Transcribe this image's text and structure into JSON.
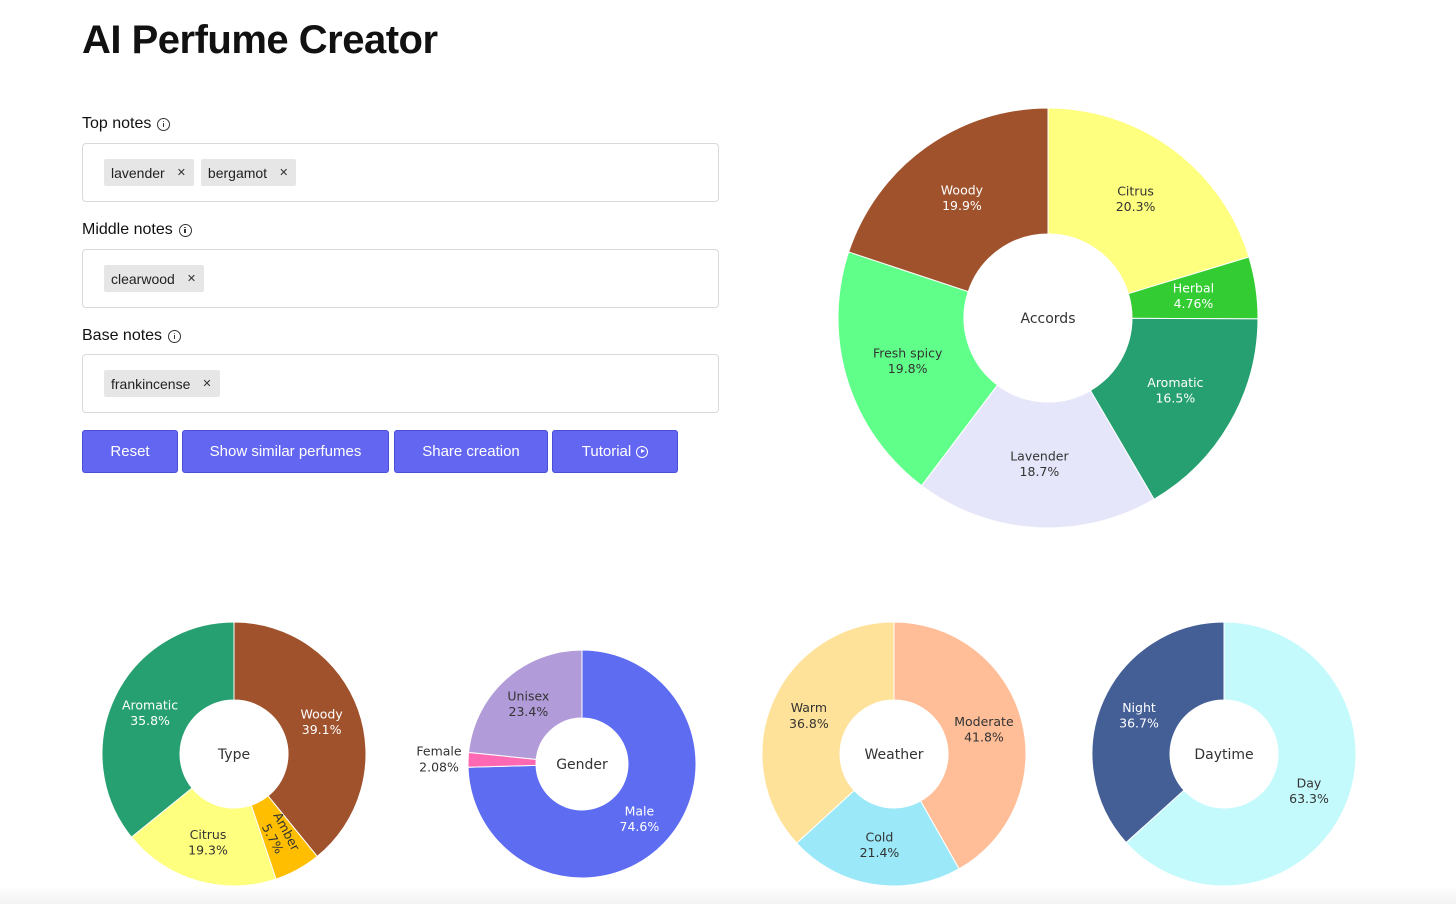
{
  "title": "AI Perfume Creator",
  "fields": [
    {
      "label": "Top notes",
      "tags": [
        "lavender",
        "bergamot"
      ]
    },
    {
      "label": "Middle notes",
      "tags": [
        "clearwood"
      ]
    },
    {
      "label": "Base notes",
      "tags": [
        "frankincense"
      ]
    }
  ],
  "buttons": {
    "reset": "Reset",
    "similar": "Show similar perfumes",
    "share": "Share creation",
    "tutorial": "Tutorial"
  },
  "chart_data": [
    {
      "type": "pie",
      "center_label": "Accords",
      "slices": [
        {
          "label": "Citrus",
          "pct": "20.3%",
          "value": 20.3,
          "color": "#ffff7f"
        },
        {
          "label": "Herbal",
          "pct": "4.76%",
          "value": 4.76,
          "color": "#33cc33"
        },
        {
          "label": "Aromatic",
          "pct": "16.5%",
          "value": 16.5,
          "color": "#26a070"
        },
        {
          "label": "Lavender",
          "pct": "18.7%",
          "value": 18.7,
          "color": "#e6e6fa"
        },
        {
          "label": "Fresh spicy",
          "pct": "19.8%",
          "value": 19.8,
          "color": "#60ff8a"
        },
        {
          "label": "Woody",
          "pct": "19.9%",
          "value": 19.9,
          "color": "#a0522d"
        }
      ]
    },
    {
      "type": "pie",
      "center_label": "Type",
      "slices": [
        {
          "label": "Woody",
          "pct": "39.1%",
          "value": 39.1,
          "color": "#a0522d"
        },
        {
          "label": "Amber",
          "pct": "5.7%",
          "value": 5.7,
          "color": "#ffbf00"
        },
        {
          "label": "Citrus",
          "pct": "19.3%",
          "value": 19.3,
          "color": "#ffff7f"
        },
        {
          "label": "Aromatic",
          "pct": "35.8%",
          "value": 35.8,
          "color": "#26a070"
        }
      ]
    },
    {
      "type": "pie",
      "center_label": "Gender",
      "slices": [
        {
          "label": "Male",
          "pct": "74.6%",
          "value": 74.6,
          "color": "#5e6cf2"
        },
        {
          "label": "Female",
          "pct": "2.08%",
          "value": 2.08,
          "color": "#ff69b4"
        },
        {
          "label": "Unisex",
          "pct": "23.4%",
          "value": 23.4,
          "color": "#b19cd9"
        }
      ]
    },
    {
      "type": "pie",
      "center_label": "Weather",
      "slices": [
        {
          "label": "Moderate",
          "pct": "41.8%",
          "value": 41.8,
          "color": "#ffbe98"
        },
        {
          "label": "Cold",
          "pct": "21.4%",
          "value": 21.4,
          "color": "#9ae8f8"
        },
        {
          "label": "Warm",
          "pct": "36.8%",
          "value": 36.8,
          "color": "#ffe29a"
        }
      ]
    },
    {
      "type": "pie",
      "center_label": "Daytime",
      "slices": [
        {
          "label": "Day",
          "pct": "63.3%",
          "value": 63.3,
          "color": "#c5fafc"
        },
        {
          "label": "Night",
          "pct": "36.7%",
          "value": 36.7,
          "color": "#445e96"
        }
      ]
    }
  ]
}
